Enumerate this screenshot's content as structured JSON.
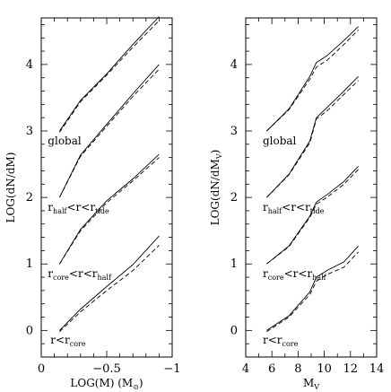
{
  "chart_data": [
    {
      "type": "line",
      "xlabel_main": "LOG(M)  (M",
      "xlabel_sym": "⊙",
      "xlabel_close": ")",
      "ylabel": "LOG(dN/dM)",
      "xlim": [
        0,
        -1
      ],
      "ylim": [
        -0.4,
        4.7
      ],
      "xticks": [
        0,
        -0.5,
        -1
      ],
      "xtick_labels": [
        "0",
        "−0.5",
        "−1"
      ],
      "yticks": [
        0,
        1,
        2,
        3,
        4
      ],
      "ytick_labels": [
        "0",
        "1",
        "2",
        "3",
        "4"
      ],
      "annotations": [
        {
          "main": "global",
          "sub": "",
          "mid": "",
          "sub2": "",
          "x": -0.05,
          "y": 2.8
        },
        {
          "main": "r",
          "sub": "half",
          "mid": "<r<r",
          "sub2": "tide",
          "x": -0.05,
          "y": 1.8
        },
        {
          "main": "r",
          "sub": "core",
          "mid": "<r<r",
          "sub2": "half",
          "x": -0.05,
          "y": 0.8
        },
        {
          "main": "r<r",
          "sub": "core",
          "mid": "",
          "sub2": "",
          "x": -0.07,
          "y": -0.2
        }
      ],
      "series": [
        {
          "group": "global",
          "style": "solid",
          "x": [
            -0.14,
            -0.3,
            -0.5,
            -0.7,
            -0.9
          ],
          "y": [
            3.0,
            3.46,
            3.86,
            4.3,
            4.72
          ]
        },
        {
          "group": "global",
          "style": "dashed",
          "x": [
            -0.14,
            -0.3,
            -0.5,
            -0.7,
            -0.9
          ],
          "y": [
            2.98,
            3.44,
            3.84,
            4.26,
            4.66
          ]
        },
        {
          "group": "half-tide",
          "style": "solid",
          "x": [
            -0.14,
            -0.3,
            -0.5,
            -0.7,
            -0.9
          ],
          "y": [
            2.0,
            2.64,
            3.1,
            3.56,
            4.0
          ]
        },
        {
          "group": "half-tide",
          "style": "dashed",
          "x": [
            -0.14,
            -0.3,
            -0.5,
            -0.7,
            -0.9
          ],
          "y": [
            2.0,
            2.62,
            3.07,
            3.52,
            3.93
          ]
        },
        {
          "group": "core-half",
          "style": "solid",
          "x": [
            -0.14,
            -0.3,
            -0.5,
            -0.7,
            -0.9
          ],
          "y": [
            1.0,
            1.52,
            1.95,
            2.28,
            2.65
          ]
        },
        {
          "group": "core-half",
          "style": "dashed",
          "x": [
            -0.14,
            -0.3,
            -0.5,
            -0.7,
            -0.9
          ],
          "y": [
            1.0,
            1.5,
            1.92,
            2.25,
            2.6
          ]
        },
        {
          "group": "inner",
          "style": "solid",
          "x": [
            -0.14,
            -0.3,
            -0.5,
            -0.7,
            -0.9
          ],
          "y": [
            0.0,
            0.32,
            0.66,
            0.99,
            1.42
          ]
        },
        {
          "group": "inner",
          "style": "dashed",
          "x": [
            -0.14,
            -0.3,
            -0.5,
            -0.7,
            -0.9
          ],
          "y": [
            -0.02,
            0.28,
            0.6,
            0.9,
            1.28
          ]
        }
      ]
    },
    {
      "type": "line",
      "xlabel_main": "M",
      "xlabel_sub": "V",
      "ylabel_main": "LOG(dN/dM",
      "ylabel_sub": "V",
      "ylabel_close": ")",
      "xlim": [
        4,
        14
      ],
      "ylim": [
        -0.4,
        4.7
      ],
      "xticks": [
        4,
        6,
        8,
        10,
        12,
        14
      ],
      "xtick_labels": [
        "4",
        "6",
        "8",
        "10",
        "12",
        "14"
      ],
      "yticks": [
        0,
        1,
        2,
        3,
        4
      ],
      "ytick_labels": [
        "0",
        "1",
        "2",
        "3",
        "4"
      ],
      "annotations": [
        {
          "main": "global",
          "sub": "",
          "mid": "",
          "sub2": "",
          "x": 5.3,
          "y": 2.8
        },
        {
          "main": "r",
          "sub": "half",
          "mid": "<r<r",
          "sub2": "tide",
          "x": 5.3,
          "y": 1.8
        },
        {
          "main": "r",
          "sub": "core",
          "mid": "<r<r",
          "sub2": "half",
          "x": 5.3,
          "y": 0.8
        },
        {
          "main": "r<r",
          "sub": "core",
          "mid": "",
          "sub2": "",
          "x": 5.3,
          "y": -0.2
        }
      ],
      "series": [
        {
          "group": "global",
          "style": "solid",
          "x": [
            5.6,
            7.3,
            8.9,
            9.4,
            10.2,
            11.5,
            12.6
          ],
          "y": [
            3.0,
            3.33,
            3.82,
            4.03,
            4.13,
            4.36,
            4.57
          ]
        },
        {
          "group": "global",
          "style": "dashed",
          "x": [
            5.6,
            7.3,
            8.9,
            9.4,
            10.2,
            11.5,
            12.6
          ],
          "y": [
            3.0,
            3.32,
            3.78,
            3.96,
            4.06,
            4.3,
            4.52
          ]
        },
        {
          "group": "half-tide",
          "style": "solid",
          "x": [
            5.6,
            7.3,
            8.9,
            9.4,
            10.2,
            11.5,
            12.6
          ],
          "y": [
            2.0,
            2.35,
            2.85,
            3.2,
            3.35,
            3.6,
            3.82
          ]
        },
        {
          "group": "half-tide",
          "style": "dashed",
          "x": [
            5.6,
            7.3,
            8.9,
            9.4,
            10.2,
            11.5,
            12.6
          ],
          "y": [
            2.0,
            2.34,
            2.82,
            3.18,
            3.3,
            3.55,
            3.76
          ]
        },
        {
          "group": "core-half",
          "style": "solid",
          "x": [
            5.6,
            7.3,
            8.9,
            9.4,
            10.2,
            11.5,
            12.6
          ],
          "y": [
            1.0,
            1.27,
            1.72,
            1.93,
            2.04,
            2.24,
            2.47
          ]
        },
        {
          "group": "core-half",
          "style": "dashed",
          "x": [
            5.6,
            7.3,
            8.9,
            9.4,
            10.2,
            11.5,
            12.6
          ],
          "y": [
            1.0,
            1.26,
            1.7,
            1.9,
            2.0,
            2.2,
            2.42
          ]
        },
        {
          "group": "inner",
          "style": "solid",
          "x": [
            5.6,
            7.3,
            8.9,
            9.4,
            10.2,
            11.5,
            12.6
          ],
          "y": [
            0.0,
            0.22,
            0.58,
            0.8,
            0.9,
            1.03,
            1.27
          ]
        },
        {
          "group": "inner",
          "style": "dashed",
          "x": [
            5.6,
            7.3,
            8.9,
            9.4,
            10.2,
            11.5,
            12.6
          ],
          "y": [
            -0.02,
            0.2,
            0.54,
            0.74,
            0.84,
            0.95,
            1.18
          ]
        }
      ]
    }
  ]
}
